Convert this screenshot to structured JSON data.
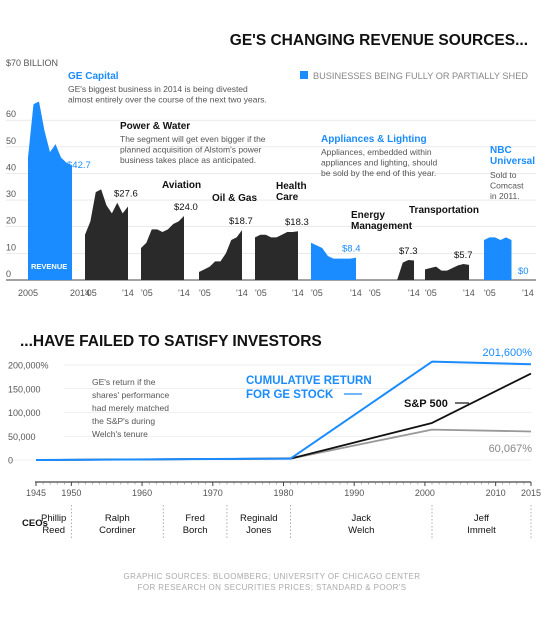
{
  "colors": {
    "shed": "#1a8cff",
    "kept": "#2a2a2a",
    "ge_line": "#1a8cff",
    "sp_line": "#111111",
    "matched_line": "#999999"
  },
  "top": {
    "title": "GE'S CHANGING REVENUE SOURCES...",
    "legend": "BUSINESSES BEING FULLY OR PARTIALLY SHED",
    "y_unit_label": "$70 BILLION",
    "y_ticks": [
      "60",
      "50",
      "40",
      "30",
      "20",
      "10",
      "0"
    ],
    "revenue_label": "REVENUE"
  },
  "bottom": {
    "title": "...HAVE FAILED TO SATISFY INVESTORS",
    "y_ticks": [
      "200,000%",
      "150,000",
      "100,000",
      "50,000",
      "0"
    ],
    "ge_label_1": "CUMULATIVE RETURN",
    "ge_label_2": "FOR GE STOCK",
    "sp_label": "S&P 500",
    "matched_note": [
      "GE's return if the",
      "shares' performance",
      "had merely matched",
      "the S&P's during",
      "Welch's tenure"
    ],
    "ge_end": "201,600%",
    "matched_end": "60,067%",
    "x_ticks": [
      "1945",
      "1950",
      "1960",
      "1970",
      "1980",
      "1990",
      "2000",
      "2010",
      "2015"
    ],
    "ceos_label": "CEOs",
    "ceos": [
      {
        "lines": [
          "Phillip",
          "Reed"
        ]
      },
      {
        "lines": [
          "Ralph",
          "Cordiner"
        ]
      },
      {
        "lines": [
          "Fred",
          "Borch"
        ]
      },
      {
        "lines": [
          "Reginald",
          "Jones"
        ]
      },
      {
        "lines": [
          "Jack",
          "Welch"
        ]
      },
      {
        "lines": [
          "Jeff",
          "Immelt"
        ]
      }
    ]
  },
  "source": [
    "GRAPHIC SOURCES: BLOOMBERG; UNIVERSITY OF CHICAGO CENTER",
    "FOR RESEARCH ON SECURITIES PRICES; STANDARD & POOR'S"
  ],
  "chart_data": [
    {
      "type": "area",
      "title": "GE'S CHANGING REVENUE SOURCES...",
      "ylabel": "$70 BILLION",
      "ylim": [
        0,
        70
      ],
      "x_range": [
        "2005",
        "2014"
      ],
      "legend": "BUSINESSES BEING FULLY OR PARTIALLY SHED",
      "series": [
        {
          "name": "GE Capital",
          "shed": true,
          "end_label": "$42.7",
          "x_labels": [
            "2005",
            "2014"
          ],
          "note": [
            "GE's biggest business in 2014 is being divested",
            "almost entirely over the course of the next two years."
          ],
          "values": [
            46,
            66,
            67,
            56,
            48,
            51,
            46,
            44,
            42.7
          ]
        },
        {
          "name": "Power & Water",
          "shed": false,
          "end_label": "$27.6",
          "x_labels": [
            "'05",
            "'14"
          ],
          "note": [
            "The segment will get even bigger if the",
            "planned acquisition of Alstom's power",
            "business takes place as anticipated."
          ],
          "values": [
            17,
            22,
            33,
            34,
            28,
            25,
            29,
            25,
            27.6
          ]
        },
        {
          "name": "Aviation",
          "shed": false,
          "end_label": "$24.0",
          "x_labels": [
            "'05",
            "'14"
          ],
          "note": [],
          "values": [
            12,
            14,
            19,
            19,
            18,
            19,
            21,
            22,
            24.0
          ]
        },
        {
          "name": "Oil & Gas",
          "shed": false,
          "end_label": "$18.7",
          "x_labels": [
            "'05",
            "'14"
          ],
          "note": [],
          "values": [
            3,
            4,
            5,
            7,
            7,
            10,
            15,
            16,
            18.7
          ]
        },
        {
          "name": "Health Care",
          "name_lines": [
            "Health",
            "Care"
          ],
          "shed": false,
          "end_label": "$18.3",
          "x_labels": [
            "'05",
            "'14"
          ],
          "note": [],
          "values": [
            16,
            17,
            17,
            16,
            16,
            17,
            18,
            18,
            18.3
          ]
        },
        {
          "name": "Appliances & Lighting",
          "shed": true,
          "end_label": "$8.4",
          "x_labels": [
            "'05",
            "'14"
          ],
          "note": [
            "Appliances, embedded within",
            "appliances and lighting, should",
            "be sold by the end of this year."
          ],
          "values": [
            14,
            13,
            12,
            9,
            8,
            8,
            8,
            8,
            8.4
          ]
        },
        {
          "name": "Energy Management",
          "name_lines": [
            "Energy",
            "Management"
          ],
          "shed": false,
          "end_label": "$7.3",
          "x_labels": [
            "'05",
            "'14"
          ],
          "note": [],
          "values": [
            0,
            0,
            0,
            0,
            0,
            0,
            6.5,
            7.5,
            7.3
          ]
        },
        {
          "name": "Transportation",
          "shed": false,
          "end_label": "$5.7",
          "x_labels": [
            "'05",
            "'14"
          ],
          "note": [],
          "values": [
            4,
            4.5,
            5,
            3.5,
            3.5,
            4.5,
            5.5,
            6,
            5.7
          ]
        },
        {
          "name": "NBC Universal",
          "name_lines": [
            "NBC",
            "Universal"
          ],
          "shed": true,
          "end_label": "$0",
          "x_labels": [
            "'05",
            "'14"
          ],
          "note": [
            "Sold to",
            "Comcast",
            "in 2011."
          ],
          "values": [
            15,
            16,
            16,
            15,
            16,
            15
          ]
        }
      ]
    },
    {
      "type": "line",
      "title": "...HAVE FAILED TO SATISFY INVESTORS",
      "xlim": [
        1945,
        2015
      ],
      "ylim": [
        0,
        210000
      ],
      "series": [
        {
          "name": "CUMULATIVE RETURN FOR GE STOCK",
          "x": [
            1945,
            1981,
            2001,
            2015
          ],
          "y": [
            0,
            3000,
            207000,
            201600
          ]
        },
        {
          "name": "S&P 500",
          "x": [
            1945,
            1981,
            2001,
            2015
          ],
          "y": [
            0,
            3000,
            78000,
            182000
          ]
        },
        {
          "name": "GE's return if the shares' performance had merely matched the S&P's during Welch's tenure",
          "x": [
            1945,
            1981,
            2001,
            2015
          ],
          "y": [
            0,
            3000,
            64000,
            60067
          ]
        }
      ],
      "ceo_tenures": [
        {
          "name": "Phillip Reed",
          "start": 1945,
          "end": 1950
        },
        {
          "name": "Ralph Cordiner",
          "start": 1950,
          "end": 1963
        },
        {
          "name": "Fred Borch",
          "start": 1963,
          "end": 1972
        },
        {
          "name": "Reginald Jones",
          "start": 1972,
          "end": 1981
        },
        {
          "name": "Jack Welch",
          "start": 1981,
          "end": 2001
        },
        {
          "name": "Jeff Immelt",
          "start": 2001,
          "end": 2015
        }
      ]
    }
  ]
}
